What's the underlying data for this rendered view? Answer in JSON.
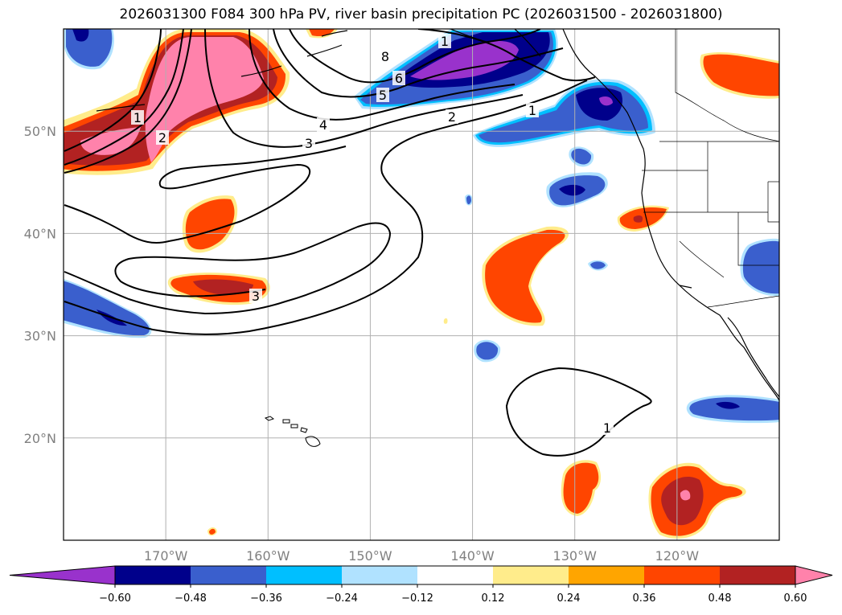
{
  "title": "2026031300 F084 300 hPa PV, river basin precipitation PC (2026031500 - 2026031800)",
  "map": {
    "lon_range": [
      -180,
      -110
    ],
    "lat_range": [
      10,
      60
    ],
    "grid": true,
    "lon_ticks": [
      {
        "value": -170,
        "label": "170°W"
      },
      {
        "value": -160,
        "label": "160°W"
      },
      {
        "value": -150,
        "label": "150°W"
      },
      {
        "value": -140,
        "label": "140°W"
      },
      {
        "value": -130,
        "label": "130°W"
      },
      {
        "value": -120,
        "label": "120°W"
      }
    ],
    "lat_ticks": [
      {
        "value": 50,
        "label": "50°N"
      },
      {
        "value": 40,
        "label": "40°N"
      },
      {
        "value": 30,
        "label": "30°N"
      },
      {
        "value": 20,
        "label": "20°N"
      }
    ]
  },
  "colorbar": {
    "orientation": "horizontal",
    "extend": "both",
    "colors": [
      "#9932CC",
      "#00008B",
      "#3A5FCD",
      "#00BFFF",
      "#B0E2FF",
      "#FFFFFF",
      "#FFEC8B",
      "#FFA500",
      "#FF4500",
      "#B22222",
      "#FF82AB"
    ],
    "tick_labels": [
      "−0.60",
      "−0.48",
      "−0.36",
      "−0.24",
      "−0.12",
      "0.12",
      "0.24",
      "0.36",
      "0.48",
      "0.60"
    ]
  },
  "contour_labels": [
    {
      "text": "8"
    },
    {
      "text": "6"
    },
    {
      "text": "5"
    },
    {
      "text": "4"
    },
    {
      "text": "3"
    },
    {
      "text": "2"
    },
    {
      "text": "2"
    },
    {
      "text": "1"
    },
    {
      "text": "1"
    },
    {
      "text": "3"
    },
    {
      "text": "1"
    },
    {
      "text": "1"
    }
  ]
}
